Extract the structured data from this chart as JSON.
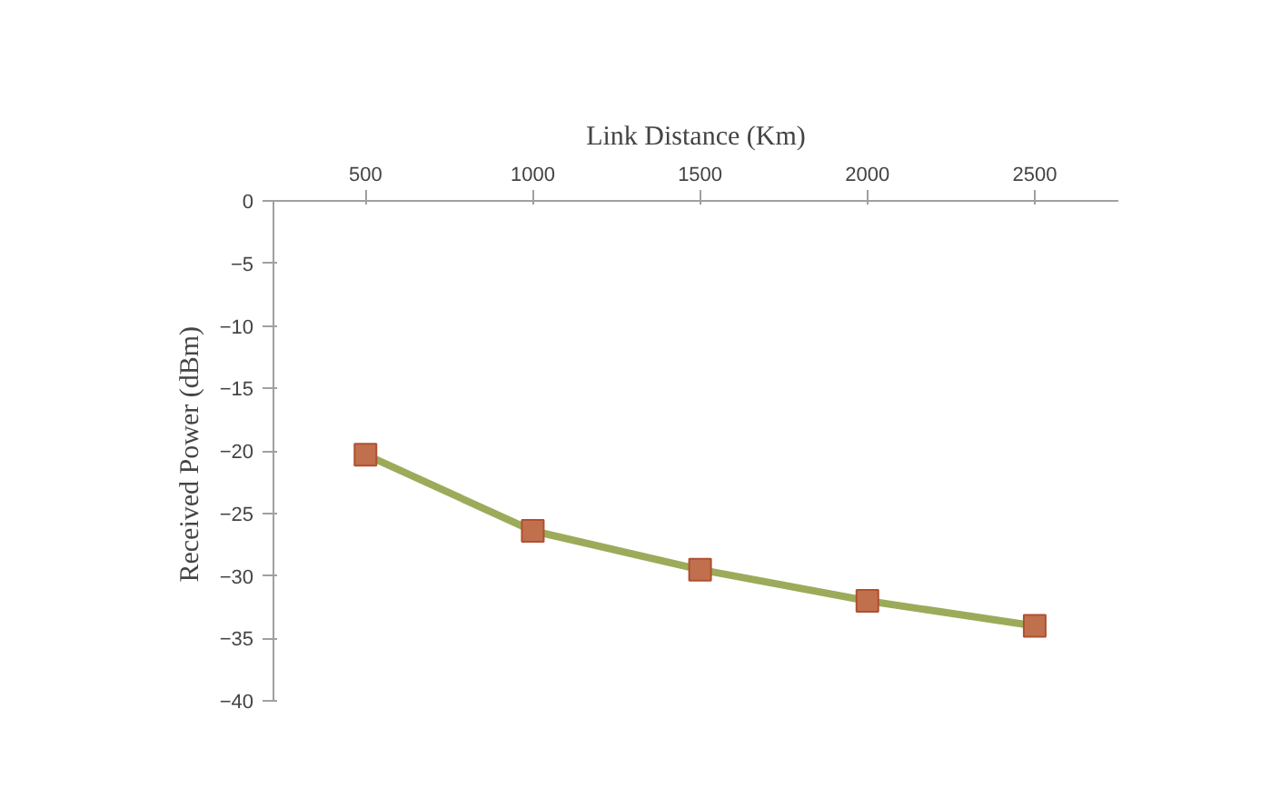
{
  "chart_data": {
    "type": "line",
    "xlabel": "Link Distance (Km)",
    "ylabel": "Received  Power (dBm)",
    "categories": [
      "500",
      "1000",
      "1500",
      "2000",
      "2500"
    ],
    "series": [
      {
        "color": "#9bab5a",
        "values": [
          -20.3,
          -26.4,
          -29.5,
          -32.0,
          -34.0
        ]
      }
    ],
    "ylim": [
      -40,
      0
    ],
    "yticks": [
      0,
      -5,
      -10,
      -15,
      -20,
      -25,
      -30,
      -35,
      -40
    ],
    "grid": false,
    "marker": "square",
    "line_style": "solid"
  }
}
